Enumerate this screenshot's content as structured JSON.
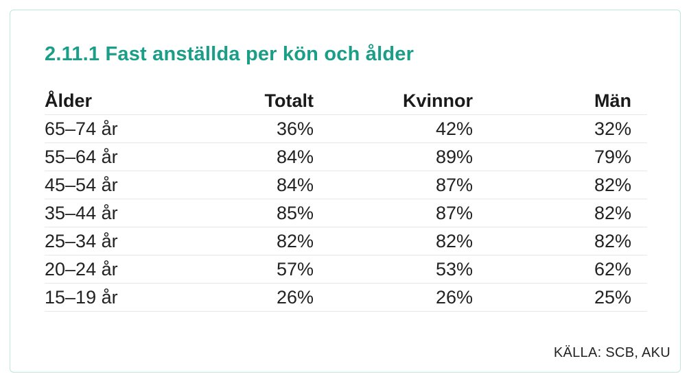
{
  "title": "2.11.1  Fast anställda per kön och ålder",
  "source": "KÄLLA: SCB, AKU",
  "colors": {
    "title": "#1a9e87",
    "border": "#bfe6d6",
    "divider": "#e6e6e6"
  },
  "chart_data": {
    "type": "table",
    "columns": [
      "Ålder",
      "Totalt",
      "Kvinnor",
      "Män"
    ],
    "rows": [
      [
        "65–74 år",
        "36%",
        "42%",
        "32%"
      ],
      [
        "55–64 år",
        "84%",
        "89%",
        "79%"
      ],
      [
        "45–54 år",
        "84%",
        "87%",
        "82%"
      ],
      [
        "35–44 år",
        "85%",
        "87%",
        "82%"
      ],
      [
        "25–34 år",
        "82%",
        "82%",
        "82%"
      ],
      [
        "20–24 år",
        "57%",
        "53%",
        "62%"
      ],
      [
        "15–19 år",
        "26%",
        "26%",
        "25%"
      ]
    ]
  }
}
